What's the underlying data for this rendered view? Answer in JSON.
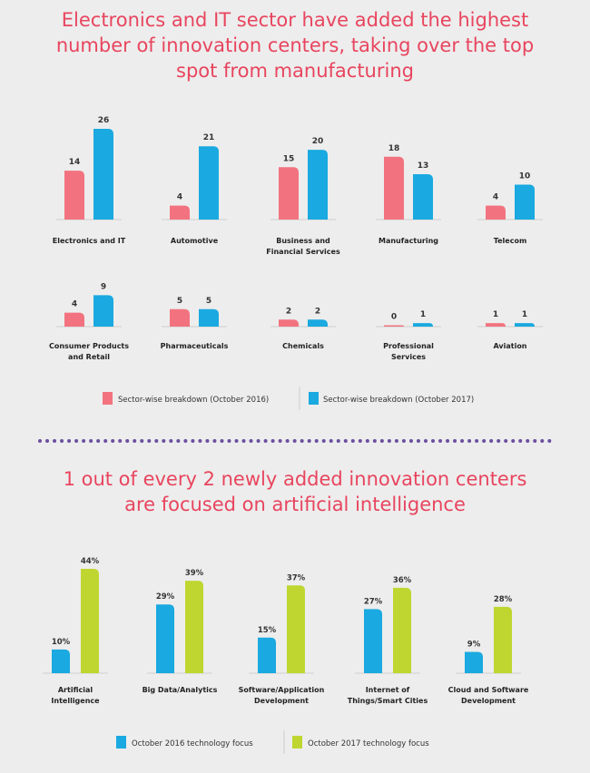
{
  "section1": {
    "title_line1": "Electronics and IT sector have added the highest",
    "title_line2": "number of innovation centers, taking over the top",
    "title_line3": "spot from manufacturing"
  },
  "section2": {
    "title_line1": "1 out of every 2 newly added innovation centers",
    "title_line2": "are focused on artificial intelligence"
  },
  "colors": {
    "pink": "#f2737f",
    "blue": "#1aa9e0",
    "green": "#bfd630",
    "title": "#e8455e",
    "divider": "#6b4fa0"
  },
  "chart_data": [
    {
      "type": "bar",
      "categories": [
        "Electronics and IT",
        "Automotive",
        "Business and Financial Services",
        "Manufacturing",
        "Telecom",
        "Consumer Products and Retail",
        "Pharmaceuticals",
        "Chemicals",
        "Professional Services",
        "Aviation"
      ],
      "category_lines": [
        [
          "Electronics and IT"
        ],
        [
          "Automotive"
        ],
        [
          "Business and",
          "Financial Services"
        ],
        [
          "Manufacturing"
        ],
        [
          "Telecom"
        ],
        [
          "Consumer Products",
          "and Retail"
        ],
        [
          "Pharmaceuticals"
        ],
        [
          "Chemicals"
        ],
        [
          "Professional",
          "Services"
        ],
        [
          "Aviation"
        ]
      ],
      "series": [
        {
          "name": "Sector-wise breakdown (October 2016)",
          "color": "#f2737f",
          "values": [
            14,
            4,
            15,
            18,
            4,
            4,
            5,
            2,
            0,
            1
          ]
        },
        {
          "name": "Sector-wise breakdown (October 2017)",
          "color": "#1aa9e0",
          "values": [
            26,
            21,
            20,
            13,
            10,
            9,
            5,
            2,
            1,
            1
          ]
        }
      ],
      "legend": "bottom"
    },
    {
      "type": "bar",
      "categories": [
        "Artificial Intelligence",
        "Big Data/Analytics",
        "Software/Application Development",
        "Internet of Things/Smart Cities",
        "Cloud and Software Development"
      ],
      "category_lines": [
        [
          "Artificial",
          "Intelligence"
        ],
        [
          "Big Data/Analytics"
        ],
        [
          "Software/Application",
          "Development"
        ],
        [
          "Internet of",
          "Things/Smart Cities"
        ],
        [
          "Cloud and Software",
          "Development"
        ]
      ],
      "series": [
        {
          "name": "October 2016 technology focus",
          "color": "#1aa9e0",
          "values": [
            10,
            29,
            15,
            27,
            9
          ]
        },
        {
          "name": "October 2017 technology focus",
          "color": "#bfd630",
          "values": [
            44,
            39,
            37,
            36,
            28
          ]
        }
      ],
      "value_suffix": "%",
      "legend": "bottom"
    }
  ]
}
